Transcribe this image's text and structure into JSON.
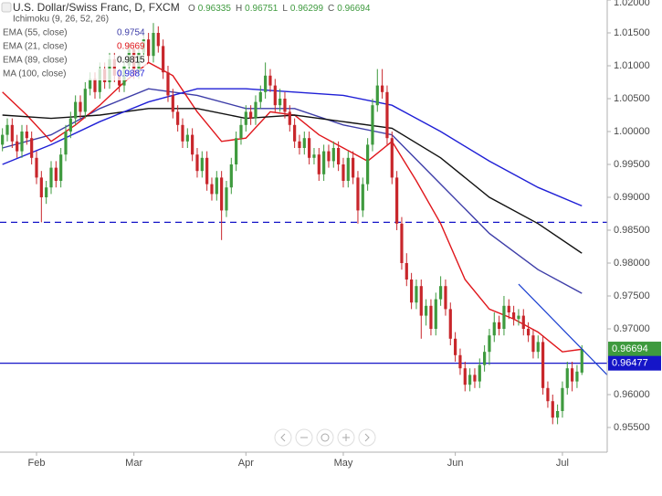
{
  "chart_data": {
    "type": "candlestick",
    "title": "U.S. Dollar/Swiss Franc, D, FXCM",
    "ohlc_labels": [
      "O",
      "H",
      "L",
      "C"
    ],
    "indicators": [
      "Ichimoku (9, 26, 52, 26)"
    ],
    "up_color": "#3e9a3e",
    "down_color": "#c8262b",
    "grid": false,
    "xlim": [
      -0.5,
      124.2
    ],
    "ylim": [
      0.95125,
      1.02
    ],
    "yticks": [
      {
        "value": 1.02,
        "label": "1.02000"
      },
      {
        "value": 1.015,
        "label": "1.01500"
      },
      {
        "value": 1.01,
        "label": "1.01000"
      },
      {
        "value": 1.005,
        "label": "1.00500"
      },
      {
        "value": 1,
        "label": "1.00000"
      },
      {
        "value": 0.995,
        "label": "0.99500"
      },
      {
        "value": 0.99,
        "label": "0.99000"
      },
      {
        "value": 0.985,
        "label": "0.98500"
      },
      {
        "value": 0.98,
        "label": "0.98000"
      },
      {
        "value": 0.975,
        "label": "0.97500"
      },
      {
        "value": 0.97,
        "label": "0.97000"
      },
      {
        "value": 0.965,
        "label": "0.96500"
      },
      {
        "value": 0.96,
        "label": "0.96000"
      },
      {
        "value": 0.955,
        "label": "0.95500"
      }
    ],
    "xticks": [
      {
        "value": 7,
        "label": "Feb"
      },
      {
        "value": 27,
        "label": "Mar"
      },
      {
        "value": 50,
        "label": "Apr"
      },
      {
        "value": 70,
        "label": "May"
      },
      {
        "value": 93,
        "label": "Jun"
      },
      {
        "value": 115,
        "label": "Jul"
      }
    ],
    "candles": [
      [
        0.998,
        1.0005,
        0.997,
        0.9995
      ],
      [
        0.9995,
        1.002,
        0.9985,
        1.001
      ],
      [
        1.001,
        1.002,
        0.9975,
        0.9985
      ],
      [
        0.9985,
        0.9995,
        0.996,
        0.997
      ],
      [
        0.997,
        1.001,
        0.996,
        1
      ],
      [
        1,
        1.001,
        0.998,
        0.999
      ],
      [
        0.999,
        1,
        0.995,
        0.996
      ],
      [
        0.996,
        0.997,
        0.992,
        0.993
      ],
      [
        0.993,
        0.994,
        0.9862,
        0.99
      ],
      [
        0.99,
        0.9925,
        0.989,
        0.9915
      ],
      [
        0.9915,
        0.9955,
        0.9905,
        0.9945
      ],
      [
        0.9945,
        0.9955,
        0.9915,
        0.9925
      ],
      [
        0.9925,
        0.9975,
        0.9915,
        0.9965
      ],
      [
        0.9965,
        1.001,
        0.9955,
        1
      ],
      [
        1,
        1.003,
        0.999,
        1.002
      ],
      [
        1.002,
        1.0055,
        1.001,
        1.0045
      ],
      [
        1.0045,
        1.0055,
        1.002,
        1.003
      ],
      [
        1.003,
        1.0075,
        1.002,
        1.0065
      ],
      [
        1.0065,
        1.009,
        1.0055,
        1.008
      ],
      [
        1.008,
        1.009,
        1.005,
        1.006
      ],
      [
        1.006,
        1.0105,
        1.005,
        1.0095
      ],
      [
        1.0095,
        1.0105,
        1.0065,
        1.0075
      ],
      [
        1.0075,
        1.012,
        1.0065,
        1.011
      ],
      [
        1.011,
        1.012,
        1.0075,
        1.0085
      ],
      [
        1.0085,
        1.0095,
        1.006,
        1.007
      ],
      [
        1.007,
        1.011,
        1.006,
        1.01
      ],
      [
        1.01,
        1.0135,
        1.009,
        1.0125
      ],
      [
        1.0125,
        1.0135,
        1.008,
        1.009
      ],
      [
        1.009,
        1.013,
        1.008,
        1.012
      ],
      [
        1.012,
        1.015,
        1.011,
        1.014
      ],
      [
        1.014,
        1.015,
        1.0105,
        1.0115
      ],
      [
        1.0115,
        1.0165,
        1.0105,
        1.015
      ],
      [
        1.015,
        1.016,
        1.012,
        1.013
      ],
      [
        1.013,
        1.014,
        1.008,
        1.009
      ],
      [
        1.009,
        1.01,
        1.0045,
        1.0055
      ],
      [
        1.0055,
        1.0065,
        1.002,
        1.003
      ],
      [
        1.003,
        1.004,
        1,
        1.001
      ],
      [
        1.001,
        1.002,
        0.9975,
        0.9985
      ],
      [
        0.9985,
        1.0005,
        0.9975,
        0.9995
      ],
      [
        0.9995,
        1.0005,
        0.9955,
        0.9965
      ],
      [
        0.9965,
        0.9975,
        0.993,
        0.994
      ],
      [
        0.994,
        0.997,
        0.993,
        0.996
      ],
      [
        0.996,
        0.997,
        0.991,
        0.992
      ],
      [
        0.992,
        0.993,
        0.9895,
        0.9905
      ],
      [
        0.9905,
        0.994,
        0.9895,
        0.993
      ],
      [
        0.993,
        0.994,
        0.9835,
        0.988
      ],
      [
        0.988,
        0.9925,
        0.987,
        0.9915
      ],
      [
        0.9915,
        0.996,
        0.9905,
        0.995
      ],
      [
        0.995,
        1,
        0.994,
        0.999
      ],
      [
        0.999,
        1.002,
        0.998,
        1.001
      ],
      [
        1.001,
        1.004,
        1,
        1.003
      ],
      [
        1.003,
        1.004,
        1.001,
        1.002
      ],
      [
        1.002,
        1.0055,
        1.001,
        1.0045
      ],
      [
        1.0045,
        1.007,
        1.0035,
        1.006
      ],
      [
        1.006,
        1.0105,
        1.005,
        1.0085
      ],
      [
        1.0085,
        1.0095,
        1.006,
        1.007
      ],
      [
        1.007,
        1.008,
        1.003,
        1.004
      ],
      [
        1.004,
        1.0065,
        1.003,
        1.005
      ],
      [
        1.005,
        1.006,
        1.002,
        1.003
      ],
      [
        1.003,
        1.004,
        1,
        1.001
      ],
      [
        1.001,
        1.002,
        0.9975,
        0.9985
      ],
      [
        0.9985,
        0.9995,
        0.9965,
        0.9975
      ],
      [
        0.9975,
        1,
        0.9965,
        0.999
      ],
      [
        0.999,
        1,
        0.995,
        0.996
      ],
      [
        0.996,
        0.9975,
        0.995,
        0.9965
      ],
      [
        0.9965,
        0.9975,
        0.9925,
        0.9935
      ],
      [
        0.9935,
        0.998,
        0.9925,
        0.997
      ],
      [
        0.997,
        0.998,
        0.9945,
        0.9955
      ],
      [
        0.9955,
        0.9985,
        0.9945,
        0.9975
      ],
      [
        0.9975,
        0.9985,
        0.994,
        0.995
      ],
      [
        0.995,
        0.996,
        0.9915,
        0.9925
      ],
      [
        0.9925,
        0.997,
        0.9915,
        0.996
      ],
      [
        0.996,
        0.997,
        0.992,
        0.993
      ],
      [
        0.993,
        0.994,
        0.986,
        0.988
      ],
      [
        0.988,
        0.993,
        0.987,
        0.992
      ],
      [
        0.992,
        0.999,
        0.991,
        0.998
      ],
      [
        0.998,
        1.005,
        0.997,
        1.004
      ],
      [
        1.004,
        1.0095,
        1.003,
        1.007
      ],
      [
        1.007,
        1.0095,
        1.005,
        1.006
      ],
      [
        1.006,
        1.007,
        0.998,
        0.999
      ],
      [
        0.999,
        1,
        0.992,
        0.993
      ],
      [
        0.993,
        0.994,
        0.985,
        0.986
      ],
      [
        0.986,
        0.987,
        0.979,
        0.98
      ],
      [
        0.98,
        0.9815,
        0.9765,
        0.9775
      ],
      [
        0.9775,
        0.9785,
        0.973,
        0.974
      ],
      [
        0.974,
        0.9775,
        0.973,
        0.9765
      ],
      [
        0.9765,
        0.9775,
        0.9685,
        0.972
      ],
      [
        0.972,
        0.9745,
        0.9705,
        0.9735
      ],
      [
        0.9735,
        0.9745,
        0.969,
        0.97
      ],
      [
        0.97,
        0.9755,
        0.969,
        0.9745
      ],
      [
        0.9745,
        0.978,
        0.9735,
        0.9765
      ],
      [
        0.9765,
        0.9775,
        0.972,
        0.973
      ],
      [
        0.973,
        0.974,
        0.9675,
        0.9685
      ],
      [
        0.9685,
        0.9695,
        0.965,
        0.966
      ],
      [
        0.966,
        0.967,
        0.963,
        0.964
      ],
      [
        0.964,
        0.965,
        0.9605,
        0.9615
      ],
      [
        0.9615,
        0.964,
        0.9605,
        0.963
      ],
      [
        0.963,
        0.964,
        0.961,
        0.962
      ],
      [
        0.962,
        0.9655,
        0.961,
        0.9645
      ],
      [
        0.9645,
        0.9675,
        0.9635,
        0.9665
      ],
      [
        0.9665,
        0.97,
        0.9645,
        0.969
      ],
      [
        0.969,
        0.9725,
        0.968,
        0.971
      ],
      [
        0.971,
        0.972,
        0.969,
        0.97
      ],
      [
        0.97,
        0.975,
        0.969,
        0.9735
      ],
      [
        0.9735,
        0.9745,
        0.9715,
        0.9725
      ],
      [
        0.9725,
        0.9735,
        0.9705,
        0.9715
      ],
      [
        0.9715,
        0.973,
        0.9705,
        0.972
      ],
      [
        0.972,
        0.973,
        0.969,
        0.97
      ],
      [
        0.97,
        0.971,
        0.968,
        0.969
      ],
      [
        0.969,
        0.97,
        0.9655,
        0.9665
      ],
      [
        0.9665,
        0.969,
        0.9655,
        0.968
      ],
      [
        0.968,
        0.969,
        0.96,
        0.961
      ],
      [
        0.961,
        0.962,
        0.958,
        0.959
      ],
      [
        0.959,
        0.96,
        0.9555,
        0.9565
      ],
      [
        0.9565,
        0.9585,
        0.9555,
        0.9575
      ],
      [
        0.9575,
        0.962,
        0.9565,
        0.961
      ],
      [
        0.961,
        0.965,
        0.96,
        0.964
      ],
      [
        0.964,
        0.965,
        0.9605,
        0.962
      ],
      [
        0.962,
        0.9645,
        0.961,
        0.9635
      ],
      [
        0.96335,
        0.96751,
        0.96299,
        0.96694
      ]
    ],
    "series": [
      {
        "name": "EMA (55, close)",
        "color": "#3d3da8",
        "x": [
          0,
          10,
          20,
          30,
          40,
          50,
          60,
          70,
          80,
          90,
          100,
          110,
          119
        ],
        "values": [
          0.9975,
          0.9995,
          1.0035,
          1.0065,
          1.0055,
          1.0035,
          1.0035,
          1.001,
          0.9995,
          0.992,
          0.9845,
          0.979,
          0.9754
        ]
      },
      {
        "name": "EMA (21, close)",
        "color": "#e0161b",
        "x": [
          0,
          5,
          10,
          15,
          20,
          25,
          30,
          35,
          40,
          45,
          50,
          55,
          60,
          65,
          70,
          75,
          80,
          85,
          90,
          95,
          100,
          105,
          110,
          115,
          119
        ],
        "values": [
          1.006,
          1.0025,
          0.9985,
          1.001,
          1.004,
          1.0075,
          1.0105,
          1.0085,
          1.003,
          0.9985,
          0.999,
          1.003,
          1.0025,
          0.9995,
          0.9975,
          0.9955,
          0.9985,
          0.9925,
          0.986,
          0.9775,
          0.973,
          0.9715,
          0.9695,
          0.9665,
          0.9669
        ]
      },
      {
        "name": "EMA (89, close)",
        "color": "#111111",
        "x": [
          0,
          10,
          20,
          30,
          40,
          50,
          60,
          70,
          80,
          90,
          100,
          110,
          119
        ],
        "values": [
          1.0025,
          1.002,
          1.0025,
          1.0035,
          1.0035,
          1.002,
          1.0025,
          1.0015,
          1.0005,
          0.996,
          0.99,
          0.986,
          0.9815
        ]
      },
      {
        "name": "MA (100, close)",
        "color": "#1f1fd6",
        "x": [
          0,
          10,
          20,
          30,
          40,
          50,
          60,
          70,
          80,
          90,
          100,
          110,
          119
        ],
        "values": [
          0.995,
          0.998,
          1.0015,
          1.0045,
          1.0065,
          1.0065,
          1.006,
          1.0055,
          1.004,
          1,
          0.9955,
          0.9915,
          0.9887
        ]
      }
    ],
    "hlines": [
      {
        "value": 0.96477,
        "color": "#1515c8",
        "style": "solid"
      },
      {
        "value": 0.9862,
        "color": "#1515c8",
        "style": "dashed"
      }
    ],
    "trendline": {
      "x": [
        106,
        124.2
      ],
      "values": [
        0.9768,
        0.963
      ],
      "color": "#1a3fd0"
    }
  }
}
